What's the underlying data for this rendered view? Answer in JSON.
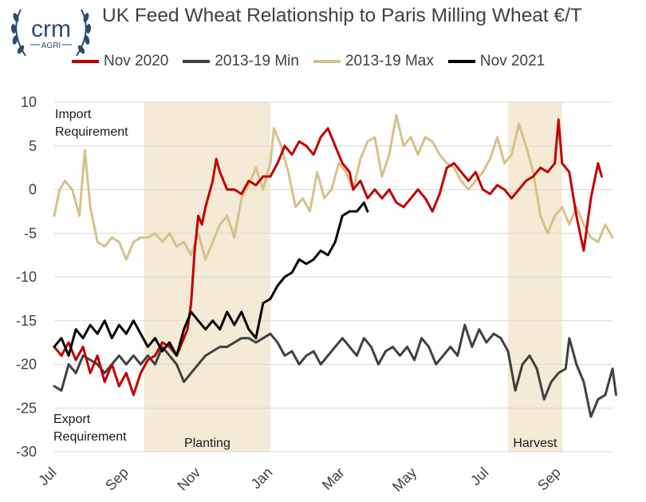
{
  "logo": {
    "brand": "crm",
    "sub": "AGRI"
  },
  "chart_data": {
    "type": "line",
    "title": "UK Feed Wheat Relationship to Paris Milling Wheat €/T",
    "xlabel": "",
    "ylabel": "",
    "ylim": [
      -30,
      10
    ],
    "yticks": [
      10,
      5,
      0,
      -5,
      -10,
      -15,
      -20,
      -25,
      -30
    ],
    "x_ticks": [
      "Jul",
      "Sep",
      "Nov",
      "Jan",
      "Mar",
      "May",
      "Jul",
      "Sep"
    ],
    "x_range_months": [
      0,
      15.5
    ],
    "grid": true,
    "legend_position": "top",
    "shaded_periods": [
      {
        "label": "Planting",
        "from": 2.5,
        "to": 6.0
      },
      {
        "label": "Harvest",
        "from": 12.6,
        "to": 14.1
      }
    ],
    "annotations": {
      "top": [
        "Import",
        "Requirement"
      ],
      "bottom": [
        "Export",
        "Requirement"
      ]
    },
    "series": [
      {
        "name": "Nov 2020",
        "color": "#c00000",
        "points": [
          [
            0,
            -18
          ],
          [
            0.2,
            -19
          ],
          [
            0.4,
            -17.5
          ],
          [
            0.6,
            -19.5
          ],
          [
            0.8,
            -18
          ],
          [
            1.0,
            -21
          ],
          [
            1.2,
            -19
          ],
          [
            1.4,
            -22
          ],
          [
            1.6,
            -20
          ],
          [
            1.8,
            -22.5
          ],
          [
            2.0,
            -21
          ],
          [
            2.2,
            -23.5
          ],
          [
            2.4,
            -21
          ],
          [
            2.6,
            -19.5
          ],
          [
            2.8,
            -19
          ],
          [
            3.0,
            -17.5
          ],
          [
            3.2,
            -18
          ],
          [
            3.4,
            -19
          ],
          [
            3.5,
            -18
          ],
          [
            3.7,
            -16
          ],
          [
            3.8,
            -13
          ],
          [
            3.9,
            -7
          ],
          [
            4.0,
            -3
          ],
          [
            4.1,
            -4
          ],
          [
            4.2,
            -2
          ],
          [
            4.4,
            1
          ],
          [
            4.5,
            3.5
          ],
          [
            4.6,
            2
          ],
          [
            4.8,
            0
          ],
          [
            5.0,
            0
          ],
          [
            5.2,
            -0.5
          ],
          [
            5.4,
            1
          ],
          [
            5.6,
            0.5
          ],
          [
            5.8,
            1.5
          ],
          [
            6.0,
            1.5
          ],
          [
            6.2,
            3
          ],
          [
            6.4,
            5
          ],
          [
            6.6,
            4
          ],
          [
            6.8,
            5.5
          ],
          [
            7.0,
            5
          ],
          [
            7.2,
            4
          ],
          [
            7.4,
            6
          ],
          [
            7.6,
            7
          ],
          [
            7.8,
            5
          ],
          [
            8.0,
            3
          ],
          [
            8.2,
            2
          ],
          [
            8.3,
            0
          ],
          [
            8.5,
            1
          ],
          [
            8.7,
            -1
          ],
          [
            8.9,
            0
          ],
          [
            9.1,
            -1
          ],
          [
            9.3,
            0
          ],
          [
            9.5,
            -1.5
          ],
          [
            9.7,
            -2
          ],
          [
            9.9,
            -1
          ],
          [
            10.1,
            0
          ],
          [
            10.3,
            -1
          ],
          [
            10.5,
            -2.5
          ],
          [
            10.7,
            -0.5
          ],
          [
            10.9,
            2.5
          ],
          [
            11.1,
            3
          ],
          [
            11.3,
            2
          ],
          [
            11.5,
            1
          ],
          [
            11.7,
            2
          ],
          [
            11.9,
            0
          ],
          [
            12.1,
            -0.5
          ],
          [
            12.3,
            0.5
          ],
          [
            12.5,
            0
          ],
          [
            12.7,
            -1
          ],
          [
            12.9,
            0
          ],
          [
            13.1,
            1
          ],
          [
            13.3,
            1.5
          ],
          [
            13.5,
            2.5
          ],
          [
            13.7,
            2
          ],
          [
            13.9,
            3
          ],
          [
            14.0,
            8
          ],
          [
            14.1,
            3
          ],
          [
            14.3,
            2
          ],
          [
            14.5,
            -3
          ],
          [
            14.7,
            -7
          ],
          [
            14.9,
            -1
          ],
          [
            15.1,
            3
          ],
          [
            15.2,
            1.5
          ]
        ]
      },
      {
        "name": "2013-19 Min",
        "color": "#404040",
        "points": [
          [
            0,
            -22.5
          ],
          [
            0.2,
            -23
          ],
          [
            0.4,
            -20
          ],
          [
            0.6,
            -21
          ],
          [
            0.8,
            -19
          ],
          [
            1.0,
            -19.5
          ],
          [
            1.2,
            -20
          ],
          [
            1.4,
            -21
          ],
          [
            1.6,
            -20
          ],
          [
            1.8,
            -19
          ],
          [
            2.0,
            -20
          ],
          [
            2.2,
            -19
          ],
          [
            2.4,
            -20
          ],
          [
            2.6,
            -19
          ],
          [
            2.8,
            -20
          ],
          [
            3.0,
            -18
          ],
          [
            3.2,
            -19
          ],
          [
            3.4,
            -20
          ],
          [
            3.6,
            -22
          ],
          [
            3.8,
            -21
          ],
          [
            4.0,
            -20
          ],
          [
            4.2,
            -19
          ],
          [
            4.4,
            -18.5
          ],
          [
            4.6,
            -18
          ],
          [
            4.8,
            -18
          ],
          [
            5.0,
            -17.5
          ],
          [
            5.2,
            -17
          ],
          [
            5.4,
            -17
          ],
          [
            5.6,
            -17.5
          ],
          [
            5.8,
            -17
          ],
          [
            6.0,
            -16.5
          ],
          [
            6.2,
            -17.5
          ],
          [
            6.4,
            -19
          ],
          [
            6.6,
            -18.5
          ],
          [
            6.8,
            -20
          ],
          [
            7.0,
            -19
          ],
          [
            7.2,
            -18.5
          ],
          [
            7.4,
            -20
          ],
          [
            7.6,
            -19
          ],
          [
            7.8,
            -18
          ],
          [
            8.0,
            -17
          ],
          [
            8.2,
            -18
          ],
          [
            8.4,
            -19
          ],
          [
            8.6,
            -17
          ],
          [
            8.8,
            -18
          ],
          [
            9.0,
            -20
          ],
          [
            9.2,
            -18.5
          ],
          [
            9.4,
            -18
          ],
          [
            9.6,
            -19
          ],
          [
            9.8,
            -18
          ],
          [
            10.0,
            -19.5
          ],
          [
            10.2,
            -17
          ],
          [
            10.4,
            -18
          ],
          [
            10.6,
            -20
          ],
          [
            10.8,
            -19
          ],
          [
            11.0,
            -18
          ],
          [
            11.2,
            -19
          ],
          [
            11.4,
            -15.5
          ],
          [
            11.6,
            -18
          ],
          [
            11.8,
            -16
          ],
          [
            12.0,
            -17.5
          ],
          [
            12.2,
            -16.5
          ],
          [
            12.4,
            -17
          ],
          [
            12.6,
            -18.5
          ],
          [
            12.8,
            -23
          ],
          [
            13.0,
            -20
          ],
          [
            13.2,
            -19
          ],
          [
            13.4,
            -20.5
          ],
          [
            13.6,
            -24
          ],
          [
            13.8,
            -22
          ],
          [
            14.0,
            -21
          ],
          [
            14.2,
            -20.5
          ],
          [
            14.3,
            -17
          ],
          [
            14.5,
            -20
          ],
          [
            14.7,
            -22
          ],
          [
            14.9,
            -26
          ],
          [
            15.1,
            -24
          ],
          [
            15.3,
            -23.5
          ],
          [
            15.5,
            -20.5
          ],
          [
            15.6,
            -23.5
          ]
        ]
      },
      {
        "name": "2013-19 Max",
        "color": "#d6c18a",
        "points": [
          [
            0,
            -3
          ],
          [
            0.15,
            0
          ],
          [
            0.3,
            1
          ],
          [
            0.5,
            0
          ],
          [
            0.7,
            -3
          ],
          [
            0.85,
            4.5
          ],
          [
            1.0,
            -2
          ],
          [
            1.2,
            -6
          ],
          [
            1.4,
            -6.5
          ],
          [
            1.6,
            -5.5
          ],
          [
            1.8,
            -6
          ],
          [
            2.0,
            -8
          ],
          [
            2.2,
            -6
          ],
          [
            2.4,
            -5.5
          ],
          [
            2.6,
            -5.5
          ],
          [
            2.8,
            -5
          ],
          [
            3.0,
            -6
          ],
          [
            3.2,
            -5
          ],
          [
            3.4,
            -6.5
          ],
          [
            3.6,
            -6
          ],
          [
            3.8,
            -7.5
          ],
          [
            4.0,
            -5
          ],
          [
            4.2,
            -8
          ],
          [
            4.4,
            -6
          ],
          [
            4.6,
            -4
          ],
          [
            4.8,
            -3
          ],
          [
            5.0,
            -5.5
          ],
          [
            5.2,
            -1
          ],
          [
            5.4,
            0.5
          ],
          [
            5.6,
            2.5
          ],
          [
            5.8,
            0
          ],
          [
            6.0,
            3
          ],
          [
            6.1,
            7
          ],
          [
            6.3,
            5
          ],
          [
            6.5,
            2
          ],
          [
            6.7,
            -2
          ],
          [
            6.9,
            -1
          ],
          [
            7.1,
            -2.5
          ],
          [
            7.3,
            2
          ],
          [
            7.5,
            -1
          ],
          [
            7.7,
            0
          ],
          [
            7.9,
            3
          ],
          [
            8.1,
            2
          ],
          [
            8.3,
            0
          ],
          [
            8.5,
            3.5
          ],
          [
            8.7,
            5.5
          ],
          [
            8.9,
            6
          ],
          [
            9.1,
            1.5
          ],
          [
            9.3,
            4
          ],
          [
            9.5,
            8.5
          ],
          [
            9.7,
            5
          ],
          [
            9.9,
            6
          ],
          [
            10.1,
            4
          ],
          [
            10.3,
            6
          ],
          [
            10.5,
            5.5
          ],
          [
            10.7,
            4
          ],
          [
            10.9,
            3
          ],
          [
            11.1,
            2.5
          ],
          [
            11.3,
            1
          ],
          [
            11.5,
            0
          ],
          [
            11.7,
            1
          ],
          [
            11.9,
            2
          ],
          [
            12.1,
            3.5
          ],
          [
            12.3,
            6
          ],
          [
            12.5,
            3
          ],
          [
            12.7,
            4
          ],
          [
            12.9,
            7.5
          ],
          [
            13.1,
            5
          ],
          [
            13.3,
            2
          ],
          [
            13.5,
            -3
          ],
          [
            13.7,
            -5
          ],
          [
            13.9,
            -3
          ],
          [
            14.1,
            -2
          ],
          [
            14.3,
            -4
          ],
          [
            14.5,
            -2
          ],
          [
            14.7,
            -4
          ],
          [
            14.9,
            -5.5
          ],
          [
            15.1,
            -6
          ],
          [
            15.3,
            -4
          ],
          [
            15.5,
            -5.5
          ]
        ]
      },
      {
        "name": "Nov 2021",
        "color": "#000000",
        "points": [
          [
            0,
            -18
          ],
          [
            0.2,
            -17
          ],
          [
            0.4,
            -19
          ],
          [
            0.6,
            -16
          ],
          [
            0.8,
            -17
          ],
          [
            1.0,
            -15.5
          ],
          [
            1.2,
            -16.5
          ],
          [
            1.4,
            -15
          ],
          [
            1.6,
            -17
          ],
          [
            1.8,
            -15.5
          ],
          [
            2.0,
            -16.5
          ],
          [
            2.2,
            -15
          ],
          [
            2.4,
            -16.5
          ],
          [
            2.6,
            -18
          ],
          [
            2.8,
            -17
          ],
          [
            3.0,
            -18.5
          ],
          [
            3.2,
            -17.5
          ],
          [
            3.4,
            -19
          ],
          [
            3.6,
            -16
          ],
          [
            3.8,
            -14
          ],
          [
            4.0,
            -15
          ],
          [
            4.2,
            -16
          ],
          [
            4.4,
            -15
          ],
          [
            4.6,
            -16
          ],
          [
            4.8,
            -14
          ],
          [
            5.0,
            -15.5
          ],
          [
            5.2,
            -14
          ],
          [
            5.4,
            -16
          ],
          [
            5.6,
            -17
          ],
          [
            5.8,
            -13
          ],
          [
            6.0,
            -12.5
          ],
          [
            6.2,
            -11
          ],
          [
            6.4,
            -10
          ],
          [
            6.6,
            -9.5
          ],
          [
            6.8,
            -8
          ],
          [
            7.0,
            -8.5
          ],
          [
            7.2,
            -8
          ],
          [
            7.4,
            -7
          ],
          [
            7.6,
            -7.5
          ],
          [
            7.8,
            -6
          ],
          [
            8.0,
            -3
          ],
          [
            8.2,
            -2.5
          ],
          [
            8.4,
            -2.5
          ],
          [
            8.6,
            -1.5
          ],
          [
            8.7,
            -2.5
          ]
        ]
      }
    ]
  }
}
